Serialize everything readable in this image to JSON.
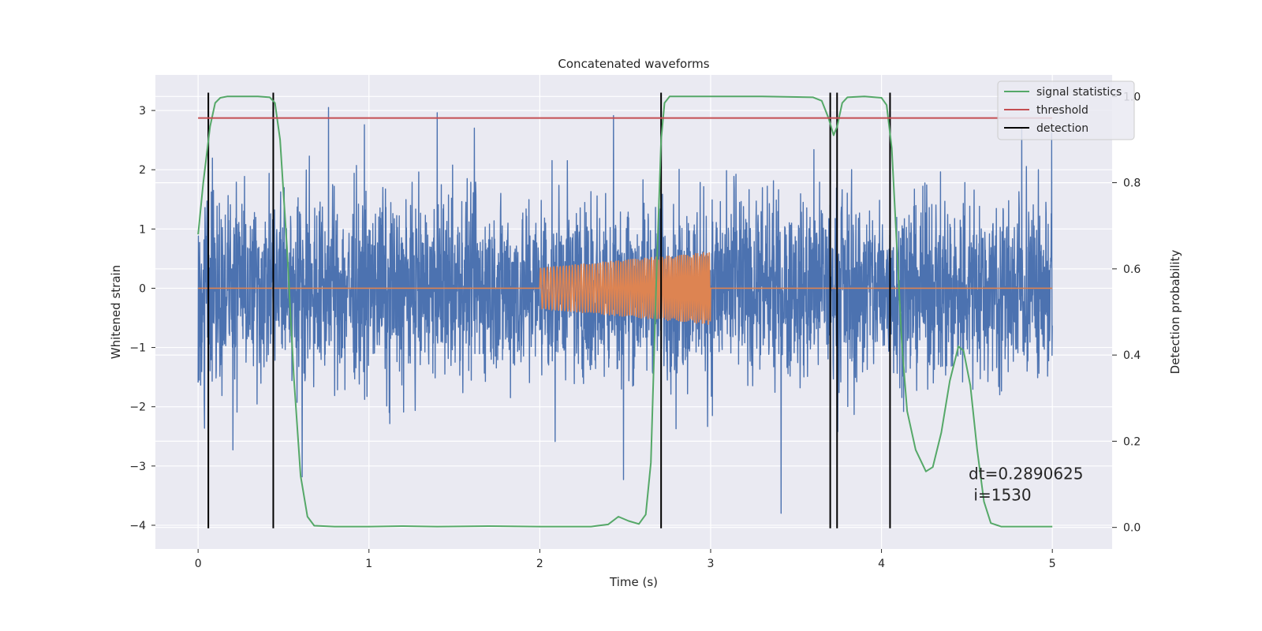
{
  "chart_data": {
    "type": "line",
    "title": "Concatenated waveforms",
    "xlabel": "Time (s)",
    "ylabel": "Whitened strain",
    "ylabel_right": "Detection probability",
    "xlim": [
      -0.25,
      5.35
    ],
    "ylim": [
      -4.4,
      3.6
    ],
    "ylim_right": [
      -0.05,
      1.05
    ],
    "xticks": [
      0,
      1,
      2,
      3,
      4,
      5
    ],
    "yticks": [
      -4,
      -3,
      -2,
      -1,
      0,
      1,
      2,
      3
    ],
    "yticks_right": [
      0.0,
      0.2,
      0.4,
      0.6,
      0.8,
      1.0
    ],
    "grid": true,
    "legend_position": "top-right",
    "colors": {
      "strain": "#4c72b0",
      "injection": "#dd8452",
      "signal_statistics": "#55a868",
      "threshold": "#c44e52",
      "detection": "#000000",
      "background": "#eaeaf2",
      "grid": "#ffffff"
    },
    "series": [
      {
        "name": "signal statistics",
        "axis": "right",
        "x": [
          0.0,
          0.03,
          0.07,
          0.1,
          0.13,
          0.17,
          0.25,
          0.35,
          0.42,
          0.45,
          0.48,
          0.52,
          0.56,
          0.6,
          0.64,
          0.68,
          0.8,
          1.0,
          1.2,
          1.4,
          1.7,
          2.0,
          2.3,
          2.4,
          2.46,
          2.52,
          2.58,
          2.62,
          2.65,
          2.68,
          2.71,
          2.73,
          2.76,
          2.8,
          3.0,
          3.3,
          3.6,
          3.65,
          3.69,
          3.72,
          3.74,
          3.77,
          3.8,
          3.9,
          4.0,
          4.03,
          4.06,
          4.09,
          4.12,
          4.15,
          4.2,
          4.26,
          4.3,
          4.35,
          4.4,
          4.45,
          4.48,
          4.52,
          4.56,
          4.6,
          4.64,
          4.7,
          4.8,
          5.0
        ],
        "y": [
          0.68,
          0.8,
          0.93,
          0.985,
          0.997,
          1.0,
          1.0,
          1.0,
          0.998,
          0.985,
          0.9,
          0.65,
          0.35,
          0.12,
          0.025,
          0.004,
          0.002,
          0.002,
          0.003,
          0.002,
          0.003,
          0.002,
          0.002,
          0.007,
          0.025,
          0.015,
          0.008,
          0.03,
          0.15,
          0.55,
          0.9,
          0.985,
          1.0,
          1.0,
          1.0,
          1.0,
          0.998,
          0.99,
          0.95,
          0.91,
          0.93,
          0.985,
          0.998,
          1.0,
          0.997,
          0.98,
          0.88,
          0.65,
          0.42,
          0.27,
          0.18,
          0.13,
          0.14,
          0.22,
          0.34,
          0.42,
          0.41,
          0.33,
          0.18,
          0.06,
          0.01,
          0.002,
          0.002,
          0.002
        ]
      },
      {
        "name": "threshold",
        "axis": "right",
        "x": [
          0.0,
          5.0
        ],
        "y": [
          0.95,
          0.95
        ]
      },
      {
        "name": "detection",
        "axis": "left",
        "x": [
          0.06,
          0.44,
          2.71,
          3.7,
          3.74,
          4.05
        ],
        "y_range": [
          -4.05,
          3.3
        ]
      },
      {
        "axis": "left",
        "role": "injected waveform",
        "x_range": [
          2.0,
          3.0
        ],
        "y": 0.0,
        "amplitude_start": 0.35,
        "amplitude_end": 0.62,
        "zero_extent": [
          0.0,
          5.0
        ]
      },
      {
        "axis": "left",
        "role": "whitened strain noise",
        "x_range": [
          0.0,
          5.0
        ],
        "typical_amplitude": 1.2,
        "max": 3.05,
        "min": -4.05
      }
    ],
    "annotations": [
      {
        "text": "dt=0.2890625",
        "x": 4.51,
        "y": -3.22
      },
      {
        "text": " i=1530",
        "x": 4.51,
        "y": -3.58
      }
    ]
  }
}
